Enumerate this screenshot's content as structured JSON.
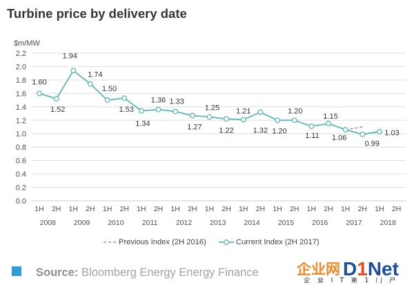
{
  "chart_data": {
    "type": "line",
    "title": "Turbine price by delivery date",
    "ylabel": "$m/MW",
    "ylim": [
      0,
      2.2
    ],
    "grid": true,
    "legend": "bottom",
    "y_ticks": [
      "2.2",
      "2.0",
      "1.8",
      "1.6",
      "1.4",
      "1.2",
      "1.0",
      "0.8",
      "0.6",
      "0.4",
      "0.2",
      "0.0"
    ],
    "x_ticks": [
      "1H",
      "2H",
      "1H",
      "2H",
      "1H",
      "2H",
      "1H",
      "2H",
      "1H",
      "2H",
      "1H",
      "2H",
      "1H",
      "2H",
      "1H",
      "2H",
      "1H",
      "2H",
      "1H",
      "2H",
      "1H",
      "2H"
    ],
    "years": [
      "2008",
      "2009",
      "2010",
      "2011",
      "2012",
      "2013",
      "2014",
      "2015",
      "2016",
      "2017",
      "2018"
    ],
    "series": [
      {
        "name": "Previous Index (2H 2016)",
        "color": "#a58a9c",
        "line_style": "dashed",
        "values": [
          null,
          null,
          null,
          null,
          null,
          null,
          null,
          null,
          null,
          null,
          null,
          null,
          null,
          null,
          null,
          null,
          null,
          null,
          1.06,
          1.1,
          null,
          null
        ]
      },
      {
        "name": "Current Index (2H 2017)",
        "color": "#5cb8b2",
        "line_style": "solid",
        "marker": "circle",
        "values": [
          1.6,
          1.52,
          1.94,
          1.74,
          1.5,
          1.53,
          1.34,
          1.36,
          1.33,
          1.27,
          1.25,
          1.22,
          1.21,
          1.32,
          1.2,
          1.2,
          1.11,
          1.15,
          1.06,
          0.99,
          1.03,
          null
        ],
        "data_labels": [
          "1.60",
          "1.52",
          "1.94",
          "1.74",
          "1.50",
          "1.53",
          "1.34",
          "1.36",
          "1.33",
          "1.27",
          "1.25",
          "1.22",
          "1.21",
          "1.32",
          "1.20",
          "1.20",
          "1.11",
          "1.15",
          "1.06",
          "0.99",
          "1.03",
          null
        ]
      }
    ]
  },
  "source": {
    "label": "Source:",
    "text": "Bloomberg Energy Energy Finance",
    "marker_color": "#2f9fd8"
  },
  "watermark": {
    "brand_cn": "企业网",
    "brand_d": "D",
    "brand_1": "1",
    "brand_net": "Net",
    "tagline": "企 业 I T 第 1 门 户"
  }
}
